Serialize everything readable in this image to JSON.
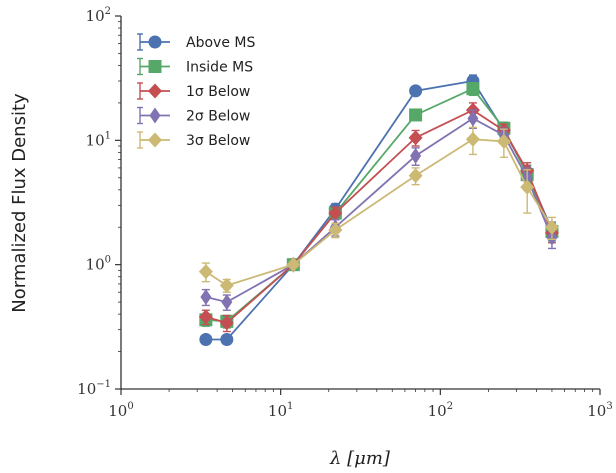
{
  "chart_data": {
    "type": "line",
    "xscale": "log",
    "yscale": "log",
    "xlim": [
      1,
      1000
    ],
    "ylim": [
      0.1,
      100
    ],
    "xlabel": "λ [μm]",
    "ylabel": "Normalized Flux Density",
    "x_ticks": [
      {
        "base": "10",
        "exp": "0"
      },
      {
        "base": "10",
        "exp": "1"
      },
      {
        "base": "10",
        "exp": "2"
      },
      {
        "base": "10",
        "exp": "3"
      }
    ],
    "y_ticks": [
      {
        "base": "10",
        "exp": "−1"
      },
      {
        "base": "10",
        "exp": "0"
      },
      {
        "base": "10",
        "exp": "1"
      },
      {
        "base": "10",
        "exp": "2"
      }
    ],
    "grid": false,
    "legend_position": "top-left",
    "x": [
      3.4,
      4.6,
      12,
      22,
      70,
      160,
      250,
      350,
      500
    ],
    "series": [
      {
        "name": "Above MS",
        "marker": "circle",
        "color": "#4c72b0",
        "values": [
          0.25,
          0.25,
          1.0,
          2.8,
          25,
          30,
          12,
          5.5,
          1.9
        ],
        "err": [
          0.02,
          0.02,
          0.05,
          0.3,
          2,
          3.5,
          1.5,
          0.8,
          0.3
        ]
      },
      {
        "name": "Inside MS",
        "marker": "square",
        "color": "#55a868",
        "values": [
          0.36,
          0.35,
          1.0,
          2.6,
          16,
          26,
          12.5,
          5.3,
          1.85
        ],
        "err": [
          0.04,
          0.04,
          0.05,
          0.3,
          1.5,
          3,
          1.5,
          0.9,
          0.3
        ]
      },
      {
        "name": "1σ Below",
        "marker": "diamond",
        "color": "#c44e52",
        "values": [
          0.38,
          0.34,
          1.0,
          2.6,
          10.5,
          17.5,
          12,
          5.7,
          1.8
        ],
        "err": [
          0.05,
          0.05,
          0.05,
          0.3,
          1.5,
          2.5,
          1.5,
          0.9,
          0.3
        ]
      },
      {
        "name": "2σ Below",
        "marker": "thin-diamond",
        "color": "#8172b2",
        "values": [
          0.55,
          0.5,
          1.0,
          2.0,
          7.5,
          15,
          11,
          5.0,
          1.65
        ],
        "err": [
          0.08,
          0.07,
          0.05,
          0.3,
          1.2,
          2.5,
          1.5,
          1.0,
          0.3
        ]
      },
      {
        "name": "3σ Below",
        "marker": "diamond",
        "color": "#ccb974",
        "values": [
          0.88,
          0.68,
          1.0,
          1.9,
          5.2,
          10.2,
          9.8,
          4.2,
          2.0
        ],
        "err": [
          0.15,
          0.08,
          0.05,
          0.25,
          0.8,
          2.5,
          2.5,
          1.6,
          0.4
        ]
      }
    ]
  }
}
